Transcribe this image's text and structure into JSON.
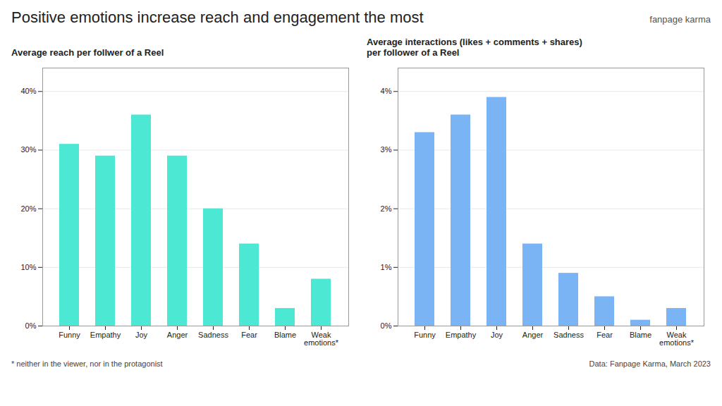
{
  "title": "Positive emotions increase reach and engagement the most",
  "annotations": [
    "fanpage karma",
    "* neither in the viewer, nor in the protagonist",
    "Data: Fanpage Karma, March 2023"
  ],
  "chart_data": [
    {
      "type": "bar",
      "subtitle": "Average reach per follwer of a Reel",
      "categories": [
        "Funny",
        "Empathy",
        "Joy",
        "Anger",
        "Sadness",
        "Fear",
        "Blame",
        "Weak\nemotions*"
      ],
      "values": [
        0.31,
        0.29,
        0.36,
        0.29,
        0.2,
        0.14,
        0.03,
        0.08
      ],
      "color": "#4de8d4",
      "ylim": [
        0,
        0.44
      ],
      "yticks": [
        {
          "value": 0.0,
          "label": "0%"
        },
        {
          "value": 0.1,
          "label": "10%"
        },
        {
          "value": 0.2,
          "label": "20%"
        },
        {
          "value": 0.3,
          "label": "30%"
        },
        {
          "value": 0.4,
          "label": "40%"
        }
      ],
      "grid": true
    },
    {
      "type": "bar",
      "subtitle": "Average interactions (likes + comments + shares)\nper follower of a Reel",
      "categories": [
        "Funny",
        "Empathy",
        "Joy",
        "Anger",
        "Sadness",
        "Fear",
        "Blame",
        "Weak\nemotions*"
      ],
      "values": [
        0.033,
        0.036,
        0.039,
        0.014,
        0.009,
        0.005,
        0.001,
        0.003
      ],
      "color": "#7ab4f5",
      "ylim": [
        0,
        0.044
      ],
      "yticks": [
        {
          "value": 0.0,
          "label": "0%"
        },
        {
          "value": 0.01,
          "label": "1%"
        },
        {
          "value": 0.02,
          "label": "2%"
        },
        {
          "value": 0.03,
          "label": "3%"
        },
        {
          "value": 0.04,
          "label": "4%"
        }
      ],
      "grid": true
    }
  ]
}
